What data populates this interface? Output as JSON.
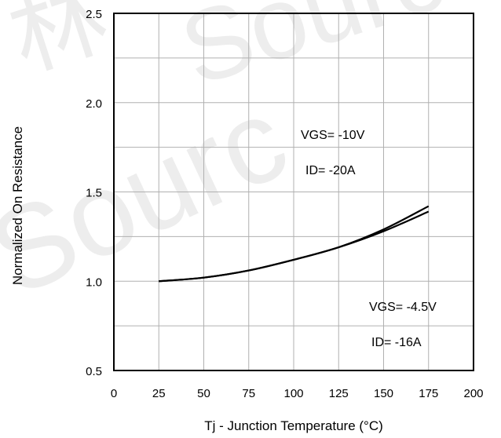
{
  "chart_data": {
    "type": "line",
    "title": "",
    "xlabel": "Tj - Junction Temperature (°C)",
    "ylabel": "Normalized On Resistance",
    "xlim": [
      0,
      200
    ],
    "ylim": [
      0.5,
      2.5
    ],
    "x_ticks": [
      0,
      25,
      50,
      75,
      100,
      125,
      150,
      175,
      200
    ],
    "x_tick_labels": [
      "0",
      "25",
      "50",
      "75",
      "100",
      "125",
      "150",
      "175",
      "200"
    ],
    "y_ticks": [
      0.5,
      1.0,
      1.5,
      2.0,
      2.5
    ],
    "y_tick_labels": [
      "0.5",
      "1.0",
      "1.5",
      "2.0",
      "2.5"
    ],
    "grid": true,
    "series": [
      {
        "x": [
          25,
          50,
          75,
          100,
          125,
          150,
          175
        ],
        "y": [
          1.0,
          1.02,
          1.06,
          1.12,
          1.19,
          1.29,
          1.42
        ]
      },
      {
        "x": [
          25,
          50,
          75,
          100,
          125,
          150,
          175
        ],
        "y": [
          1.0,
          1.02,
          1.06,
          1.12,
          1.19,
          1.28,
          1.39
        ]
      }
    ],
    "annotations": [
      {
        "lines": [
          "VGS= -10V",
          "ID= -20A"
        ]
      },
      {
        "lines": [
          "VGS= -4.5V",
          "ID= -16A"
        ]
      }
    ],
    "line_color": "#000000",
    "grid_color": "#b0b0b0",
    "watermark_color": "#d8d8d8"
  }
}
